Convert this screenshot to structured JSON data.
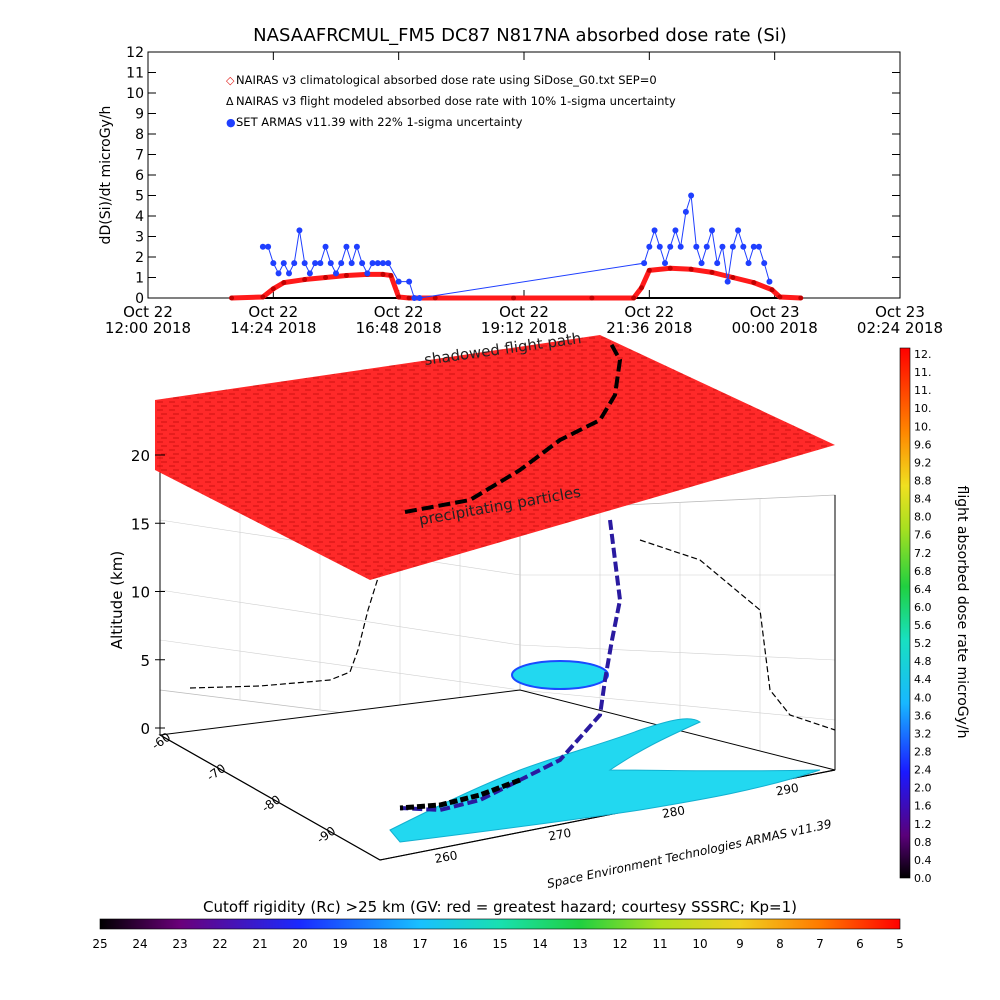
{
  "chart_data": [
    {
      "type": "line",
      "title": "NASAAFRCMUL_FM5 DC87 N817NA absorbed dose rate (Si)",
      "ylabel": "dD(Si)/dt microGy/h",
      "ylim": [
        0,
        12
      ],
      "y_ticks": [
        "0",
        "1",
        "2",
        "3",
        "4",
        "5",
        "6",
        "7",
        "8",
        "9",
        "10",
        "11",
        "12"
      ],
      "x_ticks": [
        {
          "line1": "Oct 22",
          "line2": "12:00 2018"
        },
        {
          "line1": "Oct 22",
          "line2": "14:24 2018"
        },
        {
          "line1": "Oct 22",
          "line2": "16:48 2018"
        },
        {
          "line1": "Oct 22",
          "line2": "19:12 2018"
        },
        {
          "line1": "Oct 22",
          "line2": "21:36 2018"
        },
        {
          "line1": "Oct 23",
          "line2": "00:00 2018"
        },
        {
          "line1": "Oct 23",
          "line2": "02:24 2018"
        }
      ],
      "x_hours": [
        0,
        2.4,
        4.8,
        7.2,
        9.6,
        12.0,
        14.4
      ],
      "legend": [
        {
          "marker": "◇",
          "label": "NAIRAS v3 climatological absorbed dose rate using SiDose_G0.txt SEP=0",
          "color": "#e0201c"
        },
        {
          "marker": "Δ",
          "label": "NAIRAS v3 flight modeled absorbed dose rate with 10% 1-sigma uncertainty",
          "color": "#000000"
        },
        {
          "marker": "●",
          "label": "SET ARMAS v11.39 with 22% 1-sigma uncertainty",
          "color": "#1f3fff"
        }
      ],
      "series": [
        {
          "name": "NAIRAS v3 climatological absorbed dose rate using SiDose_G0.txt SEP=0",
          "color": "#ff1a1a",
          "x": [
            1.6,
            2.2,
            2.4,
            2.6,
            3.0,
            3.4,
            3.8,
            4.2,
            4.5,
            4.65,
            4.8,
            5.0,
            5.5,
            7.0,
            8.5,
            9.3,
            9.45,
            9.6,
            10.0,
            10.4,
            10.8,
            11.2,
            11.6,
            11.95,
            12.1,
            12.5
          ],
          "y": [
            0,
            0.05,
            0.45,
            0.75,
            0.9,
            1.0,
            1.1,
            1.15,
            1.15,
            1.1,
            0.05,
            0,
            0,
            0,
            0,
            0,
            0.5,
            1.35,
            1.45,
            1.4,
            1.25,
            1.0,
            0.75,
            0.4,
            0.05,
            0
          ]
        },
        {
          "name": "NAIRAS v3 flight modeled absorbed dose rate with 10% 1-sigma uncertainty",
          "color": "#000000",
          "x": [
            1.6,
            2.2,
            4.65,
            4.8,
            9.3,
            9.45,
            12.1,
            12.5
          ],
          "y": [
            0,
            0,
            0,
            0,
            0,
            0,
            0,
            0
          ]
        },
        {
          "name": "SET ARMAS v11.39 with 22% 1-sigma uncertainty",
          "color": "#1f3fff",
          "x": [
            2.2,
            2.3,
            2.4,
            2.5,
            2.6,
            2.7,
            2.8,
            2.9,
            3.0,
            3.1,
            3.2,
            3.3,
            3.4,
            3.5,
            3.6,
            3.7,
            3.8,
            3.9,
            4.0,
            4.1,
            4.2,
            4.3,
            4.4,
            4.5,
            4.6,
            4.8,
            5.0,
            5.1,
            5.2,
            9.5,
            9.6,
            9.7,
            9.8,
            9.9,
            10.0,
            10.1,
            10.2,
            10.3,
            10.4,
            10.5,
            10.6,
            10.7,
            10.8,
            10.9,
            11.0,
            11.1,
            11.2,
            11.3,
            11.4,
            11.5,
            11.6,
            11.7,
            11.8,
            11.9
          ],
          "y": [
            2.5,
            2.5,
            1.7,
            1.2,
            1.7,
            1.2,
            1.7,
            3.3,
            1.7,
            1.2,
            1.7,
            1.7,
            2.5,
            1.7,
            1.2,
            1.7,
            2.5,
            1.7,
            2.5,
            1.7,
            1.2,
            1.7,
            1.7,
            1.7,
            1.7,
            0.8,
            0.8,
            0.0,
            0.0,
            1.7,
            2.5,
            3.3,
            2.5,
            1.7,
            2.5,
            3.3,
            2.5,
            4.2,
            5.0,
            2.5,
            1.7,
            2.5,
            3.3,
            1.7,
            2.5,
            0.8,
            2.5,
            3.3,
            2.5,
            1.7,
            2.5,
            2.5,
            1.7,
            0.8
          ]
        }
      ]
    },
    {
      "type": "scatter",
      "title": "",
      "zlabel": "Altitude (km)",
      "z_ticks": [
        "0",
        "5",
        "10",
        "15",
        "20"
      ],
      "lat_ticks": [
        "-90",
        "-80",
        "-70",
        "-60"
      ],
      "lon_ticks": [
        "260",
        "270",
        "280",
        "290"
      ],
      "annotations": [
        "shadowed flight path",
        "precipitating particles"
      ],
      "credit": "Space Environment Technologies ARMAS v11.39",
      "colorbar": {
        "label": "flight absorbed dose rate microGy/h",
        "ticks": [
          "12.",
          "11.",
          "11.",
          "10.",
          "10.",
          "9.6",
          "9.2",
          "8.8",
          "8.4",
          "8.0",
          "7.6",
          "7.2",
          "6.8",
          "6.4",
          "6.0",
          "5.6",
          "5.2",
          "4.8",
          "4.4",
          "4.0",
          "3.6",
          "3.2",
          "2.8",
          "2.4",
          "2.0",
          "1.6",
          "1.2",
          "0.8",
          "0.4",
          "0.0"
        ]
      },
      "rigidity_bar": {
        "label": "Cutoff rigidity (Rc) >25 km (GV: red = greatest hazard; courtesy SSSRC; Kp=1)",
        "ticks": [
          "25",
          "24",
          "23",
          "22",
          "21",
          "20",
          "19",
          "18",
          "17",
          "16",
          "15",
          "14",
          "13",
          "12",
          "11",
          "10",
          "9",
          "8",
          "7",
          "6",
          "5"
        ]
      }
    }
  ]
}
